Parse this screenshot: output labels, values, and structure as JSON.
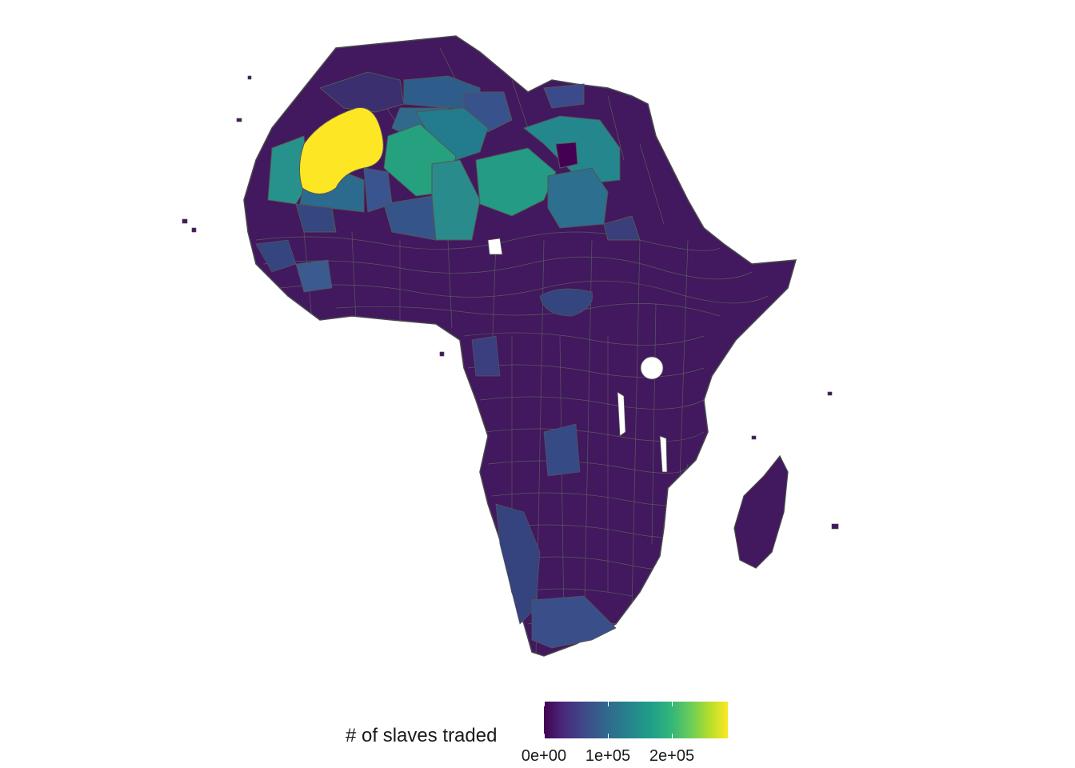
{
  "map": {
    "region": "Africa",
    "fill_scale": "viridis",
    "border_color": "#555555",
    "highlight_regions": [
      {
        "name": "sahara-west-peak",
        "color": "#fde725"
      },
      {
        "name": "sahara-central",
        "color": "#25a17f"
      },
      {
        "name": "sahara-east",
        "color": "#24878e"
      },
      {
        "name": "sahara-northeast",
        "color": "#2f6a8d"
      },
      {
        "name": "sahel-west",
        "color": "#2c728e"
      },
      {
        "name": "namibia-coast",
        "color": "#35437f"
      },
      {
        "name": "kalahari",
        "color": "#3a4f8a"
      }
    ]
  },
  "legend": {
    "title": "# of slaves traded",
    "colors": [
      "#440154",
      "#31688e",
      "#1f9e89",
      "#6dcd59",
      "#fde725"
    ],
    "ticks": [
      {
        "label": "0e+00",
        "value": 0
      },
      {
        "label": "1e+05",
        "value": 100000
      },
      {
        "label": "2e+05",
        "value": 200000
      }
    ],
    "max_value": 290000
  }
}
